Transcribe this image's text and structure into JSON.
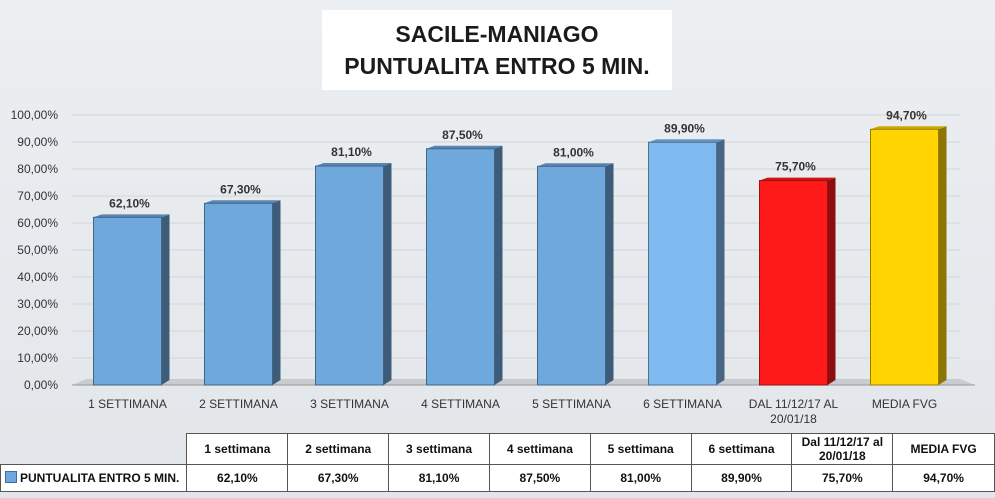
{
  "chart_data": {
    "type": "bar",
    "title": "SACILE-MANIAGO",
    "subtitle": "PUNTUALITA ENTRO 5 MIN.",
    "categories": [
      "1 SETTIMANA",
      "2 SETTIMANA",
      "3 SETTIMANA",
      "4 SETTIMANA",
      "5 SETTIMANA",
      "6 SETTIMANA",
      "DAL 11/12/17 AL 20/01/18",
      "MEDIA FVG"
    ],
    "series": [
      {
        "name": "PUNTUALITA ENTRO 5 MIN.",
        "values": [
          62.1,
          67.3,
          81.1,
          87.5,
          81.0,
          89.9,
          75.7,
          94.7
        ],
        "labels": [
          "62,10%",
          "67,30%",
          "81,10%",
          "87,50%",
          "81,00%",
          "89,90%",
          "75,70%",
          "94,70%"
        ]
      }
    ],
    "bar_colors": [
      "#6fa8dc",
      "#6fa8dc",
      "#6fa8dc",
      "#6fa8dc",
      "#6fa8dc",
      "#7fbaf0",
      "#ff1a1a",
      "#ffd400"
    ],
    "ylim": [
      0,
      100
    ],
    "yticks": [
      "0,00%",
      "10,00%",
      "20,00%",
      "30,00%",
      "40,00%",
      "50,00%",
      "60,00%",
      "70,00%",
      "80,00%",
      "90,00%",
      "100,00%"
    ],
    "grid": true,
    "data_table": {
      "headers": [
        "1 settimana",
        "2 settimana",
        "3 settimana",
        "4 settimana",
        "5 settimana",
        "6 settimana",
        "Dal 11/12/17 al 20/01/18",
        "MEDIA FVG"
      ],
      "row_label": "PUNTUALITA ENTRO 5 MIN.",
      "values": [
        "62,10%",
        "67,30%",
        "81,10%",
        "87,50%",
        "81,00%",
        "89,90%",
        "75,70%",
        "94,70%"
      ]
    }
  }
}
